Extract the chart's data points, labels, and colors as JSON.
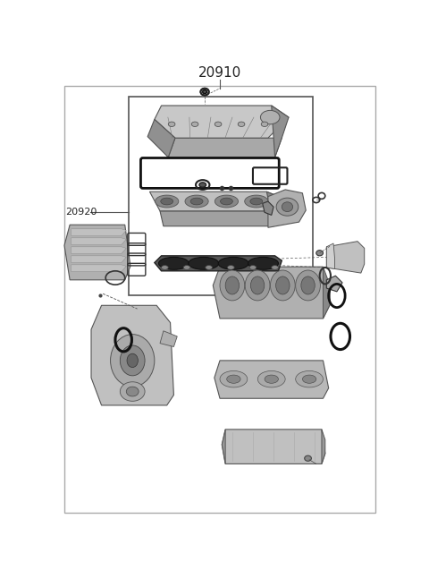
{
  "title": "20910",
  "label_20920": "20920",
  "bg_color": "#ffffff",
  "line_color": "#555555",
  "text_color": "#222222",
  "dark_color": "#333333",
  "part_color": "#b8b8b8",
  "part_dark": "#888888",
  "part_light": "#d0d0d0",
  "figsize": [
    4.8,
    6.56
  ],
  "dpi": 100
}
